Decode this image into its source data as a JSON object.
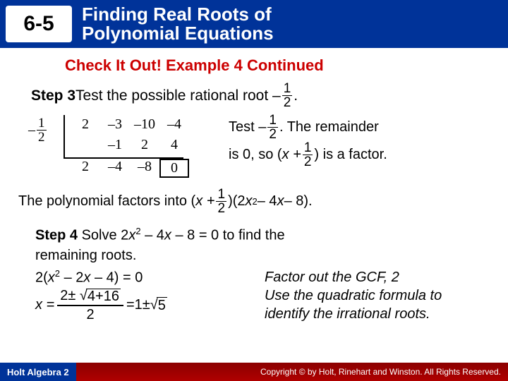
{
  "header": {
    "lesson": "6-5",
    "title_l1": "Finding Real Roots of",
    "title_l2": "Polynomial Equations"
  },
  "check": "Check It Out! Example 4 Continued",
  "step3": {
    "label": "Step 3",
    "text1": " Test the possible rational root –",
    "f_num": "1",
    "f_den": "2",
    "dot": " ."
  },
  "syn": {
    "neg": "–",
    "lf_num": "1",
    "lf_den": "2",
    "r0c0": "2",
    "r0c1": "–3",
    "r0c2": "–10",
    "r0c3": "–4",
    "r1c1": "–1",
    "r1c2": "2",
    "r1c3": "4",
    "r2c0": "2",
    "r2c1": "–4",
    "r2c2": "–8",
    "r2c3": "0"
  },
  "explain": {
    "t1": "Test –",
    "ef1n": "1",
    "ef1d": "2",
    "t2": " . The remainder",
    "t3": "is 0, so (",
    "xplus": "x + ",
    "ef2n": "1",
    "ef2d": "2",
    "t4": ") is a factor."
  },
  "poly": {
    "t1": "The polynomial factors into (",
    "xplus": "x + ",
    "pn": "1",
    "pd": "2",
    "t2": " )(2",
    "x2": "x",
    "sq": "2",
    "t3": " – 4",
    "x": "x",
    "t4": " – 8)."
  },
  "step4": {
    "label": "Step 4",
    "l1a": " Solve 2",
    "s4x1": "x",
    "s4s1": "2",
    "l1b": " – 4",
    "s4x2": "x",
    "l1c": " – 8 = 0 to find the",
    "l2": "remaining roots.",
    "l3a": "2(",
    "s4x3": "x",
    "s4s2": "2",
    "l3b": " – 2",
    "s4x4": "x",
    "l3c": " – 4) = 0"
  },
  "right": {
    "l1": "Factor out the GCF, 2",
    "l2": "Use the quadratic formula to",
    "l3": "identify the irrational roots."
  },
  "xeq": {
    "pre": "x = ",
    "top1": "2± ",
    "rad1": "4+16",
    "den": "2",
    "mid": " =1± ",
    "rad2": "5"
  },
  "footer": {
    "left": "Holt Algebra 2",
    "right": "Copyright © by Holt, Rinehart and Winston. All Rights Reserved."
  }
}
